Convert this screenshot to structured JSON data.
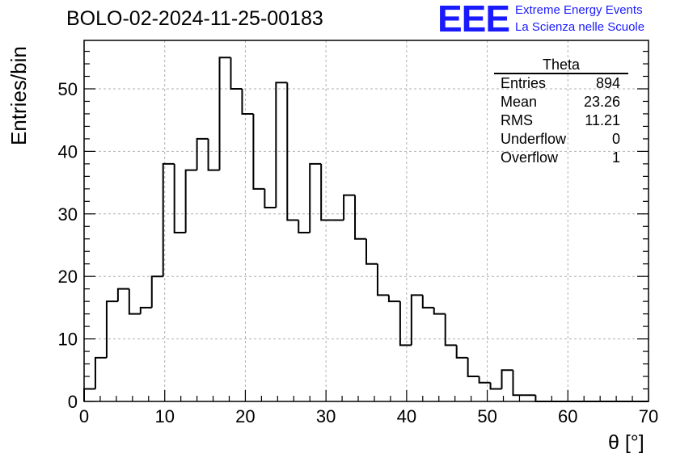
{
  "title": "BOLO-02-2024-11-25-00183",
  "logo": {
    "mark": "EEE",
    "line1": "Extreme Energy Events",
    "line2": "La Scienza nelle Scuole",
    "color": "#1a1aff"
  },
  "stats": {
    "name": "Theta",
    "rows": [
      {
        "label": "Entries",
        "value": "894"
      },
      {
        "label": "Mean",
        "value": "23.26"
      },
      {
        "label": "RMS",
        "value": "11.21"
      },
      {
        "label": "Underflow",
        "value": "0"
      },
      {
        "label": "Overflow",
        "value": "1"
      }
    ]
  },
  "chart_data": {
    "type": "bar",
    "style": "step-histogram",
    "title": "BOLO-02-2024-11-25-00183",
    "xlabel": "θ [°]",
    "ylabel": "Entries/bin",
    "xlim": [
      0,
      70
    ],
    "ylim": [
      0,
      57.75
    ],
    "bin_width": 1.4,
    "bin_edges_start": 0,
    "values": [
      2,
      7,
      16,
      18,
      14,
      15,
      20,
      38,
      27,
      37,
      42,
      37,
      55,
      50,
      46,
      34,
      31,
      51,
      29,
      27,
      38,
      29,
      29,
      33,
      26,
      22,
      17,
      16,
      9,
      17,
      15,
      14,
      9,
      7,
      4,
      3,
      2,
      5,
      1,
      1,
      0,
      0,
      0,
      0,
      0,
      0,
      0,
      0,
      0,
      0
    ],
    "x_ticks": [
      0,
      10,
      20,
      30,
      40,
      50,
      60,
      70
    ],
    "y_ticks": [
      0,
      10,
      20,
      30,
      40,
      50
    ],
    "grid": true,
    "line_color": "#000000"
  }
}
